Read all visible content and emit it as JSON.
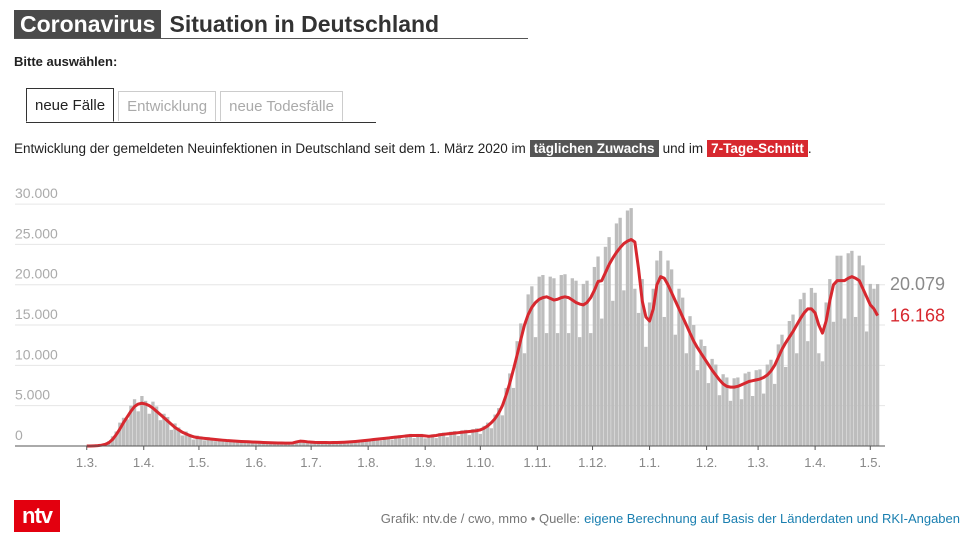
{
  "header": {
    "badge": "Coronavirus",
    "title": "Situation in Deutschland"
  },
  "prompt": "Bitte auswählen:",
  "tabs": [
    "neue Fälle",
    "Entwicklung",
    "neue Todesfälle"
  ],
  "description": {
    "text": "Entwicklung der gemeldeten Neuinfektionen in Deutschland seit dem 1. März 2020 im",
    "highlight1": "täglichen Zuwachs",
    "middle": "und im",
    "highlight2": "7-Tage-Schnitt",
    "end": "."
  },
  "chart_data": {
    "type": "bar",
    "x": [
      0,
      2,
      4,
      6,
      8,
      10,
      12,
      14,
      16,
      18,
      20,
      22,
      24,
      26,
      28,
      30,
      32,
      34,
      36,
      38,
      40,
      42,
      44,
      46,
      48,
      50,
      52,
      54,
      56,
      58,
      60,
      62,
      64,
      66,
      68,
      70,
      72,
      74,
      76,
      78,
      80,
      82,
      84,
      86,
      88,
      90,
      92,
      94,
      96,
      98,
      100,
      102,
      104,
      106,
      108,
      110,
      112,
      114,
      116,
      118,
      120,
      122,
      124,
      126,
      128,
      130,
      132,
      134,
      136,
      138,
      140,
      142,
      144,
      146,
      148,
      150,
      152,
      154,
      156,
      158,
      160,
      162,
      164,
      166,
      168,
      170,
      172,
      174,
      176,
      178,
      180,
      182,
      184,
      186,
      188,
      190,
      192,
      194,
      196,
      198,
      200,
      202,
      204,
      206,
      208,
      210,
      212,
      214,
      216,
      218,
      220,
      222,
      224,
      226,
      228,
      230,
      232,
      234,
      236,
      238,
      240,
      242,
      244,
      246,
      248,
      250,
      252,
      254,
      256,
      258,
      260,
      262,
      264,
      266,
      268,
      270,
      272,
      274,
      276,
      278,
      280,
      282,
      284,
      286,
      288,
      290,
      292,
      294,
      296,
      298,
      300,
      302,
      304,
      306,
      308,
      310,
      312,
      314,
      316,
      318,
      320,
      322,
      324,
      326,
      328,
      330,
      332,
      334,
      336,
      338,
      340,
      342,
      344,
      346,
      348,
      350,
      352,
      354,
      356,
      358,
      360,
      362,
      364,
      366,
      368,
      370,
      372,
      374,
      376,
      378,
      380,
      382,
      384,
      386,
      388,
      390,
      392,
      394,
      396,
      398,
      400,
      402,
      404,
      406,
      408,
      410,
      412,
      414,
      416,
      418,
      420,
      422,
      424,
      426,
      428,
      430
    ],
    "series": [
      {
        "name": "täglicher Zuwachs",
        "type": "bar",
        "color": "#bdbdbd",
        "end_label": "20.079",
        "label_color": "#8a8a8a",
        "values": [
          0,
          0,
          30,
          70,
          150,
          300,
          600,
          1200,
          1800,
          2900,
          3500,
          3300,
          5000,
          5800,
          4300,
          6200,
          5600,
          4000,
          5500,
          4900,
          3200,
          4000,
          3600,
          2000,
          2800,
          2300,
          1300,
          1800,
          1500,
          800,
          1300,
          1200,
          700,
          1100,
          1000,
          600,
          900,
          850,
          500,
          750,
          720,
          440,
          650,
          620,
          400,
          580,
          560,
          340,
          520,
          480,
          300,
          450,
          440,
          280,
          420,
          400,
          300,
          600,
          700,
          420,
          600,
          560,
          330,
          520,
          500,
          320,
          490,
          500,
          330,
          520,
          550,
          370,
          620,
          650,
          450,
          760,
          820,
          560,
          920,
          980,
          680,
          1100,
          1150,
          790,
          1270,
          1330,
          900,
          1440,
          1500,
          980,
          1500,
          1500,
          950,
          1380,
          1440,
          980,
          1600,
          1670,
          1100,
          1780,
          1850,
          1250,
          1950,
          2000,
          1350,
          2100,
          2200,
          1500,
          2500,
          2900,
          2200,
          3900,
          4700,
          3800,
          7200,
          9000,
          7200,
          13000,
          15200,
          11500,
          18800,
          19800,
          13500,
          21000,
          21200,
          14000,
          21000,
          20800,
          14000,
          21200,
          21300,
          14000,
          20800,
          20500,
          13500,
          20100,
          20500,
          14000,
          22200,
          23500,
          15800,
          24700,
          25900,
          18000,
          27600,
          28300,
          19300,
          29200,
          29500,
          19500,
          16500,
          20700,
          12300,
          17800,
          19500,
          23000,
          24200,
          16000,
          23000,
          21900,
          13800,
          19500,
          18400,
          11500,
          16100,
          15000,
          9400,
          13200,
          12400,
          7800,
          10800,
          10100,
          6300,
          8900,
          8500,
          5600,
          8400,
          8500,
          5800,
          9000,
          9200,
          6200,
          9400,
          9500,
          6500,
          10100,
          10700,
          7700,
          12600,
          13800,
          9800,
          15500,
          16300,
          11500,
          18200,
          19000,
          13000,
          19600,
          19000,
          11500,
          10500,
          17800,
          20700,
          15400,
          23600,
          23600,
          15800,
          23900,
          24200,
          16000,
          23600,
          22400,
          14200,
          20100,
          19500,
          20079
        ]
      },
      {
        "name": "7-Tage-Schnitt",
        "type": "line",
        "color": "#d7282f",
        "end_label": "16.168",
        "label_color": "#d7282f",
        "values": [
          0,
          0,
          20,
          50,
          100,
          200,
          400,
          800,
          1400,
          2100,
          2900,
          3600,
          4300,
          4900,
          5200,
          5300,
          5200,
          5000,
          4700,
          4300,
          3900,
          3500,
          3100,
          2700,
          2300,
          2000,
          1700,
          1500,
          1300,
          1150,
          1050,
          1000,
          950,
          900,
          850,
          800,
          760,
          720,
          680,
          650,
          620,
          590,
          560,
          540,
          520,
          500,
          480,
          460,
          440,
          420,
          400,
          390,
          380,
          370,
          360,
          350,
          380,
          500,
          600,
          580,
          520,
          480,
          450,
          440,
          430,
          430,
          420,
          430,
          440,
          450,
          470,
          500,
          530,
          560,
          600,
          650,
          700,
          750,
          800,
          850,
          900,
          950,
          1000,
          1050,
          1100,
          1150,
          1200,
          1250,
          1300,
          1300,
          1300,
          1300,
          1250,
          1200,
          1250,
          1300,
          1400,
          1450,
          1500,
          1550,
          1600,
          1650,
          1700,
          1750,
          1800,
          1850,
          1900,
          2000,
          2200,
          2500,
          2900,
          3400,
          4100,
          5000,
          6300,
          7800,
          9500,
          11300,
          13200,
          15000,
          16300,
          17200,
          17800,
          18200,
          18400,
          18500,
          18300,
          18100,
          18200,
          18400,
          18500,
          18400,
          18100,
          17800,
          17600,
          17500,
          17800,
          18400,
          19300,
          20400,
          20500,
          21500,
          22500,
          23300,
          24000,
          24600,
          25100,
          25400,
          25600,
          25300,
          22000,
          18000,
          16000,
          15500,
          17000,
          20000,
          21000,
          20800,
          20000,
          19000,
          18000,
          17000,
          16000,
          15000,
          14000,
          13000,
          12200,
          11500,
          10800,
          10100,
          9400,
          8800,
          8200,
          7700,
          7400,
          7300,
          7300,
          7400,
          7600,
          7800,
          8000,
          8100,
          8200,
          8300,
          8500,
          8800,
          9300,
          10000,
          11000,
          12000,
          12800,
          13500,
          14200,
          15000,
          15800,
          16500,
          17000,
          17000,
          16500,
          15000,
          14000,
          15500,
          18000,
          20000,
          20500,
          20500,
          20500,
          20800,
          21000,
          20800,
          20500,
          19500,
          18500,
          17500,
          17000,
          16168
        ]
      }
    ],
    "xlim": [
      -39,
      434
    ],
    "xticks": [
      {
        "value": 0,
        "label": "1.3."
      },
      {
        "value": 31,
        "label": "1.4."
      },
      {
        "value": 61,
        "label": "1.5."
      },
      {
        "value": 92,
        "label": "1.6."
      },
      {
        "value": 122,
        "label": "1.7."
      },
      {
        "value": 153,
        "label": "1.8."
      },
      {
        "value": 184,
        "label": "1.9."
      },
      {
        "value": 214,
        "label": "1.10."
      },
      {
        "value": 245,
        "label": "1.11."
      },
      {
        "value": 275,
        "label": "1.12."
      },
      {
        "value": 306,
        "label": "1.1."
      },
      {
        "value": 337,
        "label": "1.2."
      },
      {
        "value": 365,
        "label": "1.3."
      },
      {
        "value": 396,
        "label": "1.4."
      },
      {
        "value": 426,
        "label": "1.5."
      }
    ],
    "ylim": [
      0,
      31000
    ],
    "yticks": [
      0,
      {
        "value": 5000,
        "label": "5.000"
      },
      {
        "value": 10000,
        "label": "10.000"
      },
      {
        "value": 15000,
        "label": "15.000"
      },
      {
        "value": 20000,
        "label": "20.000"
      },
      {
        "value": 25000,
        "label": "25.000"
      },
      {
        "value": 30000,
        "label": "30.000"
      }
    ],
    "grid": true
  },
  "footer": {
    "logo": "ntv",
    "credit": "Grafik: ntv.de / cwo, mmo • Quelle:",
    "source": "eigene Berechnung auf Basis der Länderdaten und RKI-Angaben"
  }
}
